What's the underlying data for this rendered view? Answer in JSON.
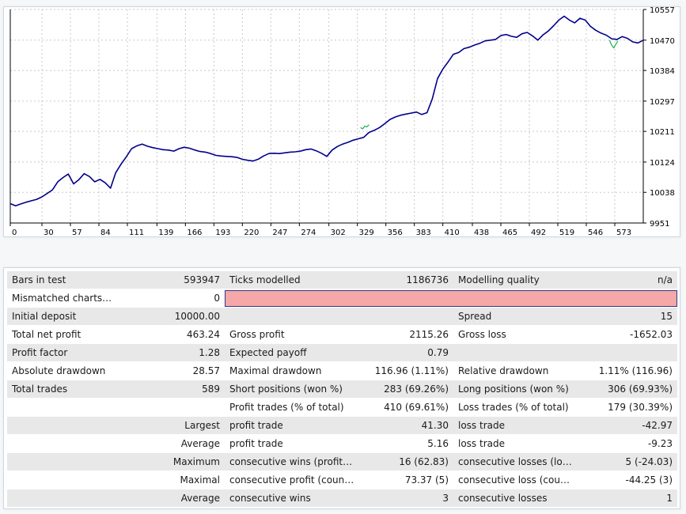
{
  "chart_data": {
    "type": "line",
    "title": "",
    "xlabel": "",
    "ylabel": "",
    "xlim": [
      0,
      600
    ],
    "ylim": [
      9951,
      10557
    ],
    "x_ticks": [
      "0",
      "30",
      "57",
      "84",
      "111",
      "139",
      "166",
      "193",
      "220",
      "247",
      "274",
      "302",
      "329",
      "356",
      "383",
      "410",
      "438",
      "465",
      "492",
      "519",
      "546",
      "573"
    ],
    "y_ticks": [
      "10557",
      "10470",
      "10384",
      "10297",
      "10211",
      "10124",
      "10038",
      "9951"
    ],
    "grid": true,
    "colors": {
      "balance": "#00008b",
      "equity": "#22b14c"
    },
    "series": [
      {
        "color_key": "balance",
        "x": [
          0,
          5,
          10,
          15,
          20,
          25,
          30,
          35,
          40,
          45,
          50,
          55,
          60,
          65,
          70,
          75,
          80,
          85,
          90,
          95,
          100,
          105,
          110,
          115,
          120,
          125,
          130,
          135,
          140,
          145,
          150,
          155,
          160,
          165,
          170,
          175,
          180,
          185,
          190,
          195,
          200,
          205,
          210,
          215,
          220,
          225,
          230,
          235,
          240,
          245,
          250,
          255,
          260,
          265,
          270,
          275,
          280,
          285,
          290,
          295,
          300,
          305,
          310,
          315,
          320,
          325,
          330,
          335,
          340,
          345,
          350,
          355,
          360,
          365,
          370,
          375,
          380,
          385,
          390,
          395,
          400,
          405,
          410,
          415,
          420,
          425,
          430,
          435,
          440,
          445,
          450,
          455,
          460,
          465,
          470,
          475,
          480,
          485,
          490,
          495,
          500,
          505,
          510,
          515,
          520,
          525,
          530,
          535,
          540,
          545,
          550,
          555,
          560,
          565,
          570,
          575,
          580,
          585,
          590,
          595,
          600
        ],
        "values": [
          10006,
          10000,
          10005,
          10010,
          10014,
          10018,
          10025,
          10035,
          10045,
          10068,
          10080,
          10090,
          10062,
          10074,
          10091,
          10083,
          10068,
          10075,
          10065,
          10050,
          10094,
          10118,
          10139,
          10162,
          10170,
          10175,
          10169,
          10165,
          10162,
          10159,
          10158,
          10155,
          10162,
          10166,
          10163,
          10158,
          10154,
          10152,
          10148,
          10143,
          10141,
          10140,
          10139,
          10137,
          10132,
          10129,
          10127,
          10132,
          10141,
          10148,
          10149,
          10148,
          10150,
          10152,
          10153,
          10155,
          10159,
          10161,
          10156,
          10149,
          10140,
          10158,
          10168,
          10175,
          10180,
          10186,
          10190,
          10194,
          10208,
          10214,
          10222,
          10233,
          10245,
          10252,
          10257,
          10260,
          10263,
          10266,
          10259,
          10264,
          10303,
          10361,
          10388,
          10408,
          10430,
          10435,
          10446,
          10450,
          10456,
          10461,
          10468,
          10470,
          10472,
          10483,
          10486,
          10481,
          10478,
          10488,
          10492,
          10482,
          10470,
          10485,
          10496,
          10511,
          10527,
          10538,
          10527,
          10519,
          10532,
          10527,
          10509,
          10498,
          10490,
          10484,
          10474,
          10472,
          10480,
          10475,
          10465,
          10462,
          10470
        ]
      },
      {
        "color_key": "equity",
        "x": [
          332,
          334,
          336,
          338,
          340
        ],
        "values": [
          10222,
          10218,
          10226,
          10224,
          10230
        ]
      },
      {
        "color_key": "equity",
        "x": [
          568,
          570,
          572,
          574,
          576
        ],
        "values": [
          10470,
          10456,
          10448,
          10458,
          10468
        ]
      }
    ]
  },
  "report": {
    "rows": [
      {
        "c1": "Bars in test",
        "c2": "593947",
        "c3": "Ticks modelled",
        "c4": "1186736",
        "c5": "Modelling quality",
        "c6": "n/a",
        "shade": true
      },
      {
        "c1": "Mismatched charts err...",
        "c2": "0",
        "c3": "",
        "c4": "",
        "c5": "",
        "c6": "",
        "shade": false,
        "bar": true
      },
      {
        "c1": "Initial deposit",
        "c2": "10000.00",
        "c3": "",
        "c4": "",
        "c5": "Spread",
        "c6": "15",
        "shade": true
      },
      {
        "c1": "Total net profit",
        "c2": "463.24",
        "c3": "Gross profit",
        "c4": "2115.26",
        "c5": "Gross loss",
        "c6": "-1652.03",
        "shade": false
      },
      {
        "c1": "Profit factor",
        "c2": "1.28",
        "c3": "Expected payoff",
        "c4": "0.79",
        "c5": "",
        "c6": "",
        "shade": true
      },
      {
        "c1": "Absolute drawdown",
        "c2": "28.57",
        "c3": "Maximal drawdown",
        "c4": "116.96 (1.11%)",
        "c5": "Relative drawdown",
        "c6": "1.11% (116.96)",
        "shade": false
      },
      {
        "c1": "Total trades",
        "c2": "589",
        "c3": "Short positions (won %)",
        "c4": "283 (69.26%)",
        "c5": "Long positions (won %)",
        "c6": "306 (69.93%)",
        "shade": true
      },
      {
        "c1": "",
        "c2": "",
        "c3": "Profit trades (% of total)",
        "c4": "410 (69.61%)",
        "c5": "Loss trades (% of total)",
        "c6": "179 (30.39%)",
        "shade": false
      },
      {
        "c1": "",
        "c2": "Largest",
        "c3": "profit trade",
        "c4": "41.30",
        "c5": "loss trade",
        "c6": "-42.97",
        "shade": true
      },
      {
        "c1": "",
        "c2": "Average",
        "c3": "profit trade",
        "c4": "5.16",
        "c5": "loss trade",
        "c6": "-9.23",
        "shade": false
      },
      {
        "c1": "",
        "c2": "Maximum",
        "c3": "consecutive wins (profit in ...",
        "c4": "16 (62.83)",
        "c5": "consecutive losses (loss in ...",
        "c6": "5 (-24.03)",
        "shade": true
      },
      {
        "c1": "",
        "c2": "Maximal",
        "c3": "consecutive profit (count ...",
        "c4": "73.37 (5)",
        "c5": "consecutive loss (count of...",
        "c6": "-44.25 (3)",
        "shade": false
      },
      {
        "c1": "",
        "c2": "Average",
        "c3": "consecutive wins",
        "c4": "3",
        "c5": "consecutive losses",
        "c6": "1",
        "shade": true
      }
    ]
  }
}
